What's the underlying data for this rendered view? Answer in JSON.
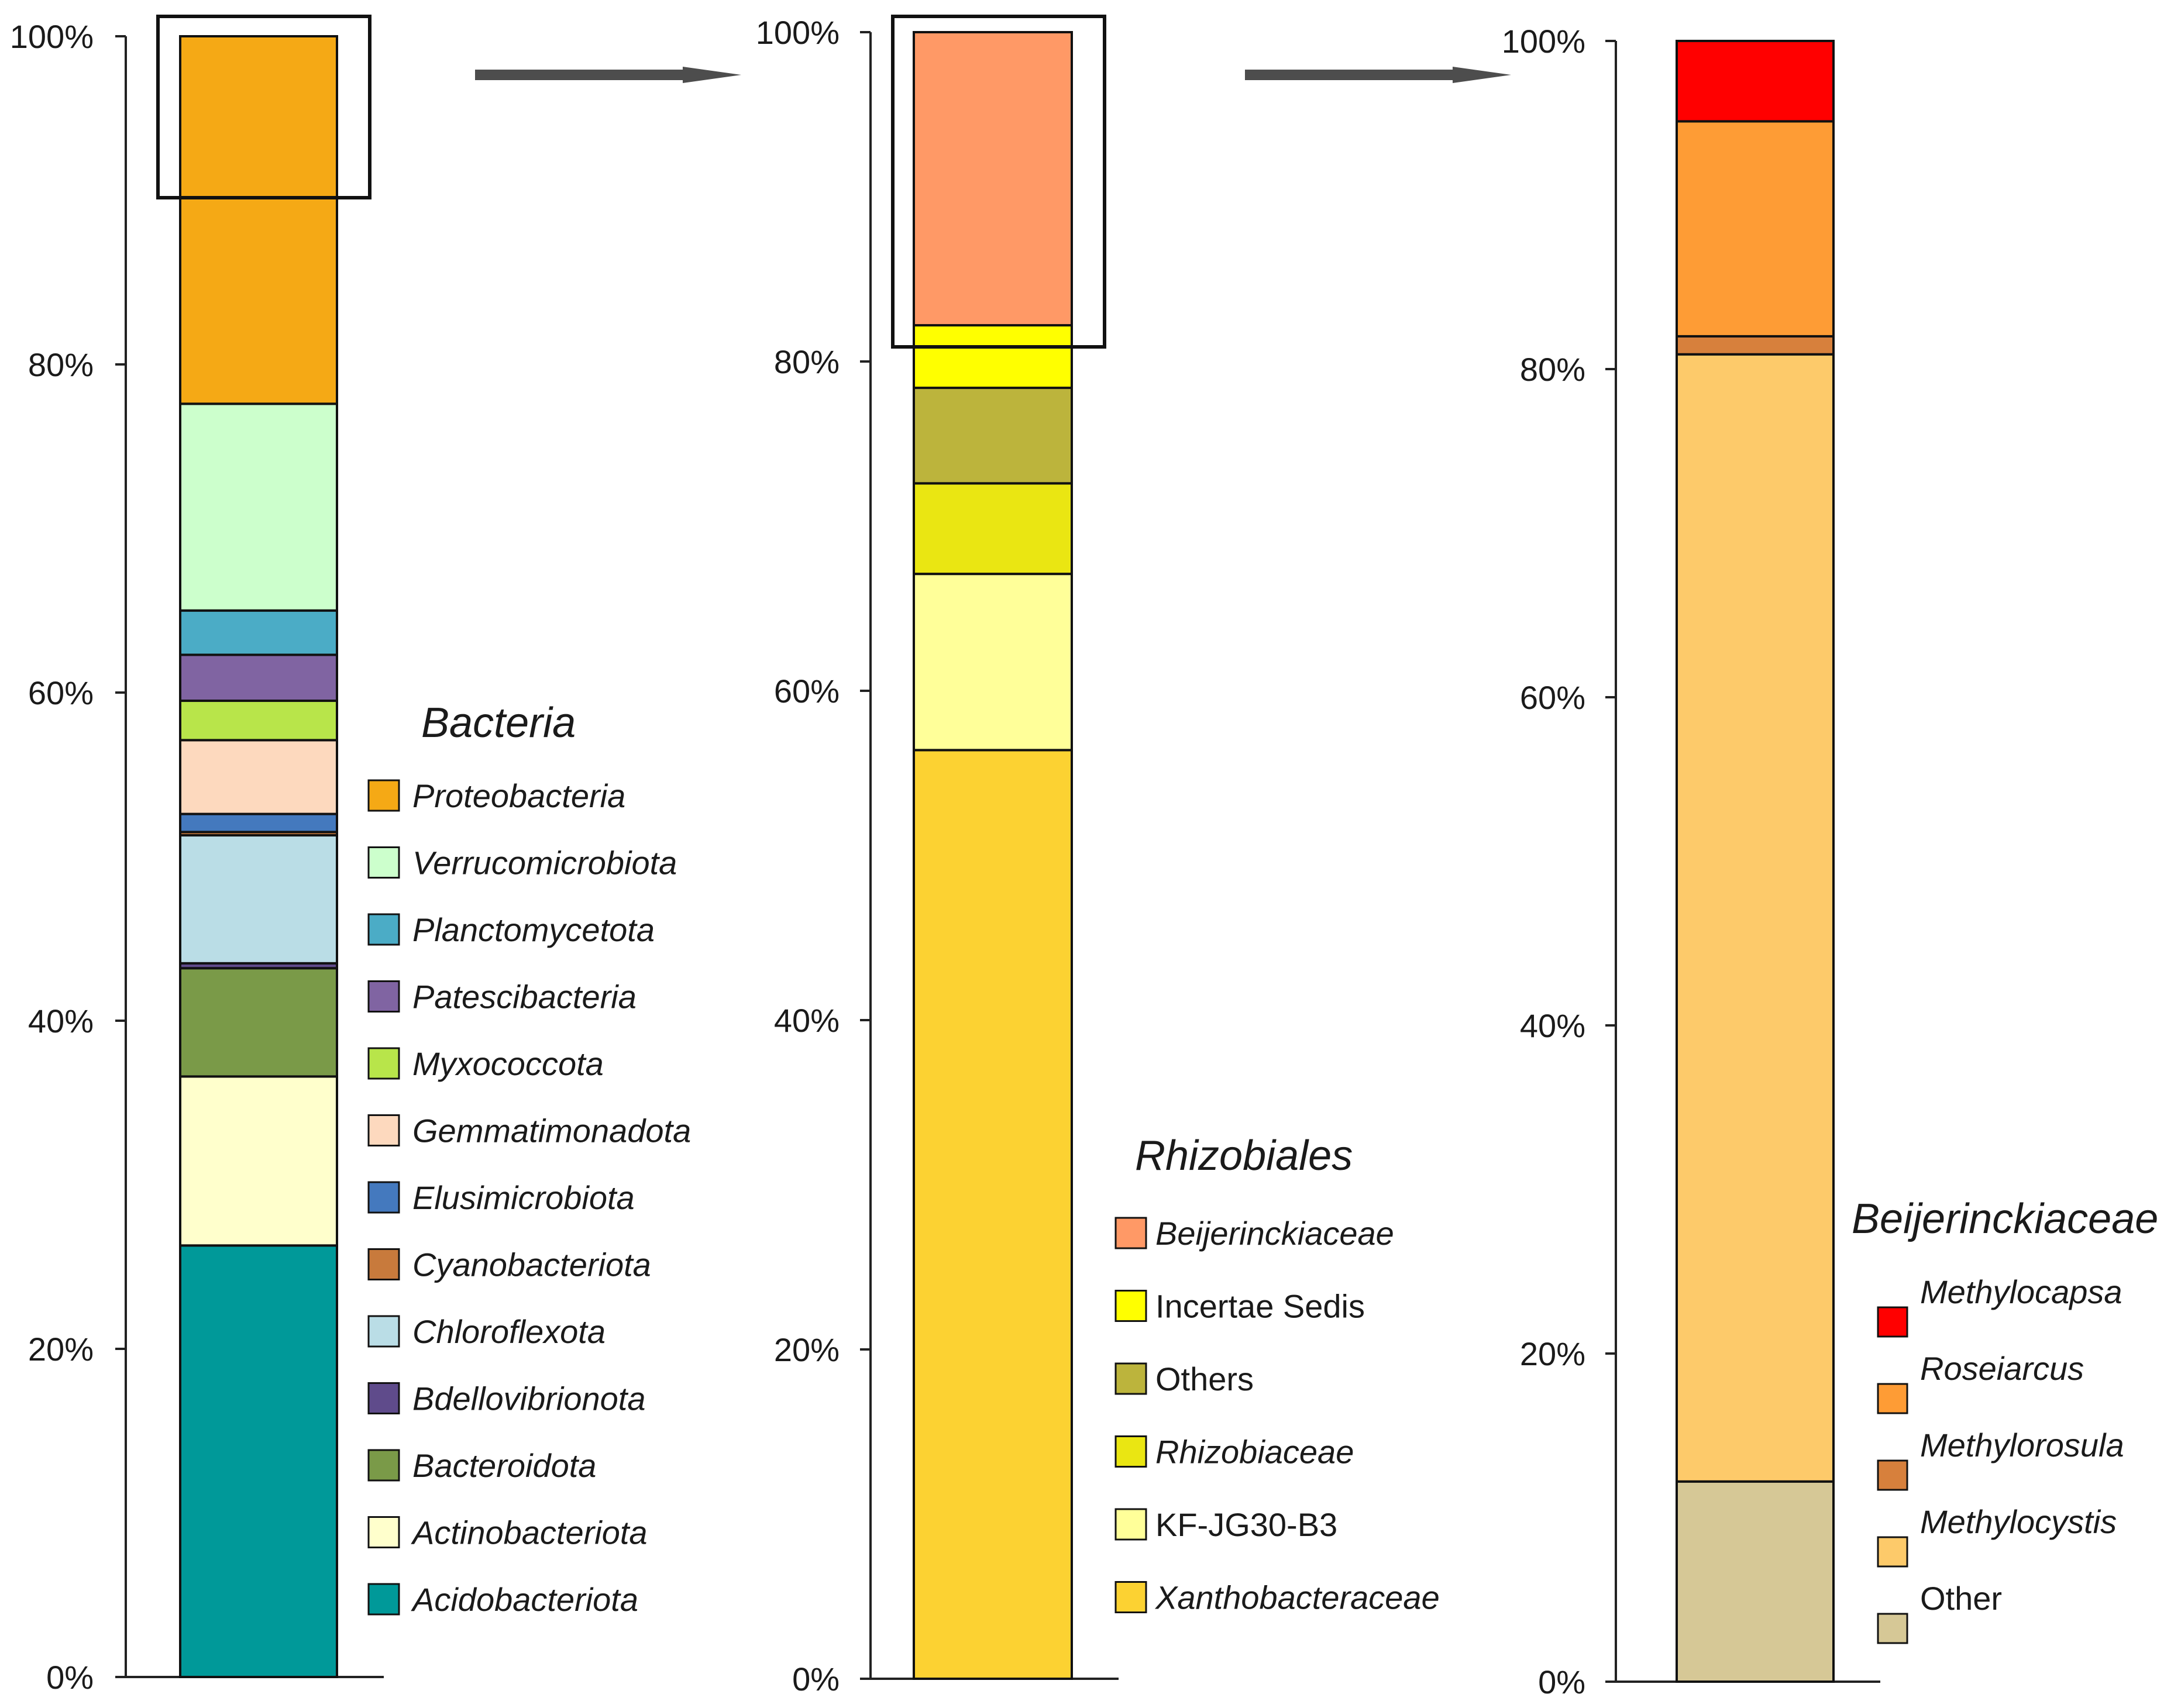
{
  "chart_data": [
    {
      "type": "stacked-bar",
      "legend_title": "Bacteria",
      "ylim": [
        0,
        100
      ],
      "yticks": [
        "0%",
        "20%",
        "40%",
        "60%",
        "80%",
        "100%"
      ],
      "highlight_range": [
        90.2,
        100
      ],
      "segments": [
        {
          "name": "Acidobacteriota",
          "value": 26.3,
          "color": "#009999",
          "italic": true
        },
        {
          "name": "Actinobacteriota",
          "value": 10.3,
          "color": "#FFFFCC",
          "italic": true
        },
        {
          "name": "Bacteroidota",
          "value": 6.6,
          "color": "#7A9A48",
          "italic": true
        },
        {
          "name": "Bdellovibrionota",
          "value": 0.3,
          "color": "#5F4B8B",
          "italic": true
        },
        {
          "name": "Chloroflexota",
          "value": 7.8,
          "color": "#BADDE6",
          "italic": true
        },
        {
          "name": "Cyanobacteriota",
          "value": 0.2,
          "color": "#C87A3C",
          "italic": true
        },
        {
          "name": "Elusimicrobiota",
          "value": 1.1,
          "color": "#4479BE",
          "italic": true
        },
        {
          "name": "Gemmatimonadota",
          "value": 4.5,
          "color": "#FDD9BE",
          "italic": true
        },
        {
          "name": "Myxococcota",
          "value": 2.4,
          "color": "#B8E54A",
          "italic": true
        },
        {
          "name": "Patescibacteria",
          "value": 2.8,
          "color": "#8064A2",
          "italic": true
        },
        {
          "name": "Planctomycetota",
          "value": 2.7,
          "color": "#4BACC6",
          "italic": true
        },
        {
          "name": "Verrucomicrobiota",
          "value": 12.6,
          "color": "#CCFFCC",
          "italic": true
        },
        {
          "name": "Proteobacteria",
          "value": 22.4,
          "color": "#F5A915",
          "italic": true
        }
      ]
    },
    {
      "type": "stacked-bar",
      "legend_title": "Rhizobiales",
      "ylim": [
        0,
        100
      ],
      "yticks": [
        "0%",
        "20%",
        "40%",
        "60%",
        "80%",
        "100%"
      ],
      "highlight_range": [
        81,
        100
      ],
      "segments": [
        {
          "name": "Xanthobacteraceae",
          "value": 56.4,
          "color": "#FCD232",
          "italic": true
        },
        {
          "name": "KF-JG30-B3",
          "value": 10.7,
          "color": "#FFFF99",
          "italic": false
        },
        {
          "name": "Rhizobiaceae",
          "value": 5.5,
          "color": "#EAE612",
          "italic": true
        },
        {
          "name": "Others",
          "value": 5.8,
          "color": "#BCB43C",
          "italic": false
        },
        {
          "name": "Incertae Sedis",
          "value": 3.8,
          "color": "#FFFF00",
          "italic": false
        },
        {
          "name": "Beijerinckiaceae",
          "value": 17.8,
          "color": "#FF9966",
          "italic": true
        }
      ]
    },
    {
      "type": "stacked-bar",
      "legend_title": "Beijerinckiaceae",
      "ylim": [
        0,
        100
      ],
      "yticks": [
        "0%",
        "20%",
        "40%",
        "60%",
        "80%",
        "100%"
      ],
      "segments": [
        {
          "name": "Other",
          "value": 12.2,
          "color": "#D6C896",
          "italic": false
        },
        {
          "name": "Methylocystis",
          "value": 68.7,
          "color": "#FDCA6A",
          "italic": true
        },
        {
          "name": "Methylorosula",
          "value": 1.1,
          "color": "#D7803C",
          "italic": true
        },
        {
          "name": "Roseiarcus",
          "value": 13.1,
          "color": "#FE9C35",
          "italic": true
        },
        {
          "name": "Methylocapsa",
          "value": 4.9,
          "color": "#FF0000",
          "italic": true
        }
      ]
    }
  ]
}
